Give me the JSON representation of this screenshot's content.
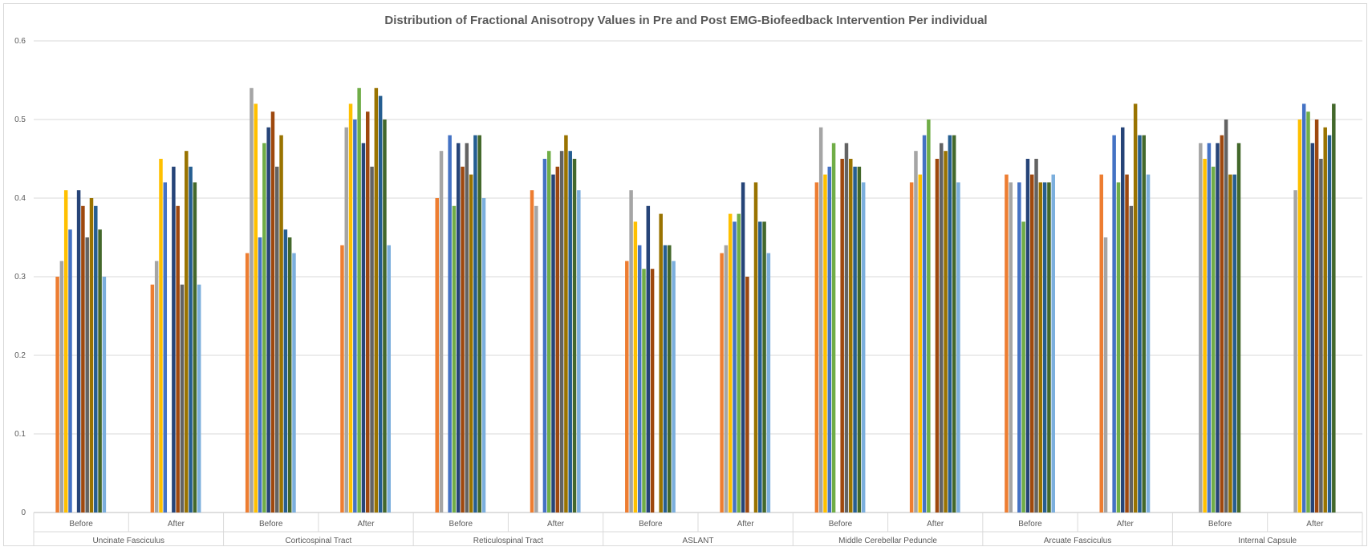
{
  "chart_data": {
    "type": "bar",
    "title": "Distribution of Fractional Anisotropy Values in Pre and Post EMG-Biofeedback Intervention Per individual",
    "xlabel": "",
    "ylabel": "",
    "ylim": [
      0,
      0.6
    ],
    "yticks": [
      "0",
      "0.1",
      "0.2",
      "0.3",
      "0.4",
      "0.5",
      "0.6"
    ],
    "grid": true,
    "legend": "none",
    "colors": [
      "#ED7D31",
      "#A5A5A5",
      "#FFC000",
      "#4472C4",
      "#70AD47",
      "#264478",
      "#9E480E",
      "#636363",
      "#997300",
      "#255E91",
      "#43682B",
      "#7CAFDD"
    ],
    "groups": [
      {
        "name": "Uncinate Fasciculus",
        "before": [
          0.3,
          0.32,
          0.41,
          0.36,
          null,
          0.41,
          0.39,
          0.35,
          0.4,
          0.39,
          0.36,
          0.3
        ],
        "after": [
          0.29,
          0.32,
          0.45,
          0.42,
          null,
          0.44,
          0.39,
          0.29,
          0.46,
          0.44,
          0.42,
          0.29
        ]
      },
      {
        "name": "Corticospinal Tract",
        "before": [
          0.33,
          0.54,
          0.52,
          0.35,
          0.47,
          0.49,
          0.51,
          0.44,
          0.48,
          0.36,
          0.35,
          0.33
        ],
        "after": [
          0.34,
          0.49,
          0.52,
          0.5,
          0.54,
          0.47,
          0.51,
          0.44,
          0.54,
          0.53,
          0.5,
          0.34
        ]
      },
      {
        "name": "Reticulospinal Tract",
        "before": [
          0.4,
          0.46,
          null,
          0.48,
          0.39,
          0.47,
          0.44,
          0.47,
          0.43,
          0.48,
          0.48,
          0.4
        ],
        "after": [
          0.41,
          0.39,
          null,
          0.45,
          0.46,
          0.43,
          0.44,
          0.46,
          0.48,
          0.46,
          0.45,
          0.41
        ]
      },
      {
        "name": "ASLANT",
        "before": [
          0.32,
          0.41,
          0.37,
          0.34,
          0.31,
          0.39,
          0.31,
          null,
          0.38,
          0.34,
          0.34,
          0.32
        ],
        "after": [
          0.33,
          0.34,
          0.38,
          0.37,
          0.38,
          0.42,
          0.3,
          null,
          0.42,
          0.37,
          0.37,
          0.33
        ]
      },
      {
        "name": "Middle Cerebellar Peduncle",
        "before": [
          0.42,
          0.49,
          0.43,
          0.44,
          0.47,
          null,
          0.45,
          0.47,
          0.45,
          0.44,
          0.44,
          0.42
        ],
        "after": [
          0.42,
          0.46,
          0.43,
          0.48,
          0.5,
          null,
          0.45,
          0.47,
          0.46,
          0.48,
          0.48,
          0.42
        ]
      },
      {
        "name": "Arcuate Fasciculus",
        "before": [
          0.43,
          0.42,
          null,
          0.42,
          0.37,
          0.45,
          0.43,
          0.45,
          0.42,
          0.42,
          0.42,
          0.43
        ],
        "after": [
          0.43,
          0.35,
          null,
          0.48,
          0.42,
          0.49,
          0.43,
          0.39,
          0.52,
          0.48,
          0.48,
          0.43
        ]
      },
      {
        "name": "Internal Capsule",
        "before": [
          null,
          0.47,
          0.45,
          0.47,
          0.44,
          0.47,
          0.48,
          0.5,
          0.43,
          0.43,
          0.47,
          null
        ],
        "after": [
          null,
          0.41,
          0.5,
          0.52,
          0.51,
          0.47,
          0.5,
          0.45,
          0.49,
          0.48,
          0.52,
          null
        ]
      }
    ],
    "sublabels": [
      "Before",
      "After"
    ]
  }
}
